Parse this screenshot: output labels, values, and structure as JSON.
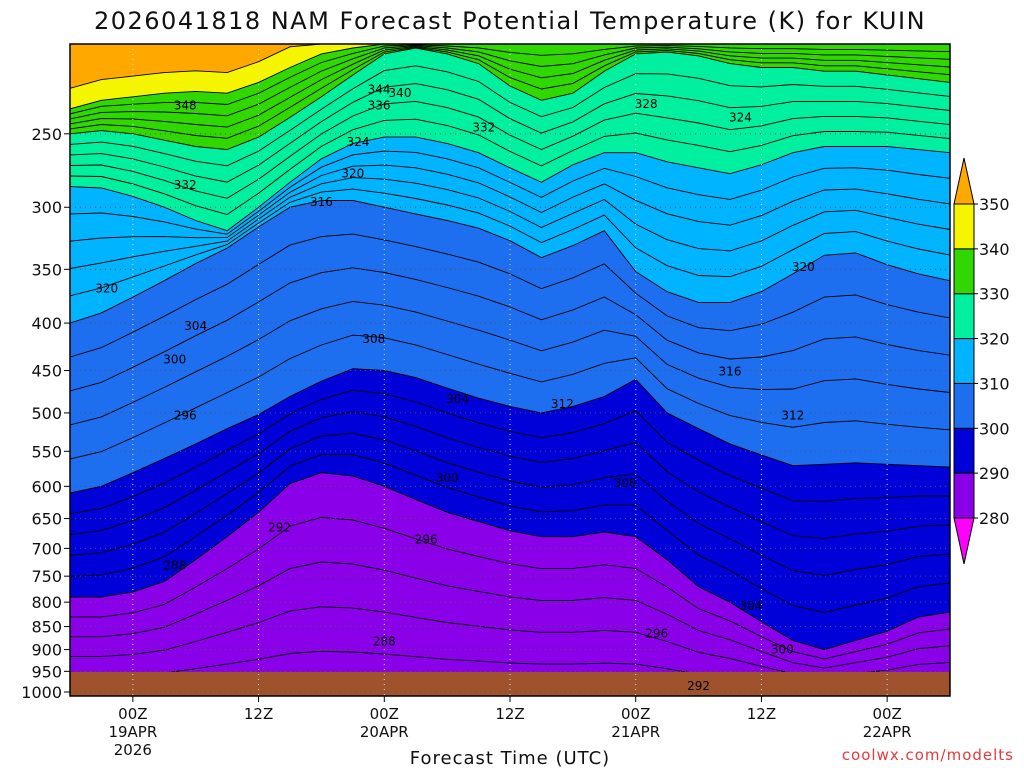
{
  "chart_data": {
    "type": "heatmap",
    "title": "2026041818 NAM Forecast Potential Temperature (K) for KUIN",
    "xlabel": "Forecast Time (UTC)",
    "ylabel": "",
    "credit": "coolwx.com/modelts",
    "y_ticks": [
      "250",
      "300",
      "350",
      "400",
      "450",
      "500",
      "550",
      "600",
      "650",
      "700",
      "750",
      "800",
      "850",
      "900",
      "950",
      "1000"
    ],
    "y_tick_values": [
      250,
      300,
      350,
      400,
      450,
      500,
      550,
      600,
      650,
      700,
      750,
      800,
      850,
      900,
      950,
      1000
    ],
    "y_scale": "log-pressure, inverted",
    "ylim": [
      1010,
      200
    ],
    "x_ticks": [
      {
        "hour": 6,
        "label": "00Z",
        "date": "19APR",
        "year": "2026"
      },
      {
        "hour": 18,
        "label": "12Z",
        "date": "",
        "year": ""
      },
      {
        "hour": 30,
        "label": "00Z",
        "date": "20APR",
        "year": ""
      },
      {
        "hour": 42,
        "label": "12Z",
        "date": "",
        "year": ""
      },
      {
        "hour": 54,
        "label": "00Z",
        "date": "21APR",
        "year": ""
      },
      {
        "hour": 66,
        "label": "12Z",
        "date": "",
        "year": ""
      },
      {
        "hour": 78,
        "label": "00Z",
        "date": "22APR",
        "year": ""
      }
    ],
    "xlim": [
      0,
      84
    ],
    "colorbar": {
      "levels": [
        280,
        290,
        300,
        310,
        320,
        330,
        340,
        350
      ],
      "labels": [
        "280",
        "290",
        "300",
        "310",
        "320",
        "330",
        "340",
        "350"
      ],
      "colors": [
        "#8a00e8",
        "#2c00f2",
        "#0000d8",
        "#1e6ef0",
        "#00b4ff",
        "#00f0a0",
        "#30d700",
        "#9ee800",
        "#f5f500",
        "#ffa800"
      ],
      "under_color": "#ff00ff",
      "over_color": "#ffa800"
    },
    "bands": [
      {
        "level": 340,
        "p": [
          235,
          230,
          228,
          226,
          225,
          226,
          220,
          212,
          205,
          202,
          200,
          200,
          200,
          200,
          200,
          200,
          200,
          200,
          200,
          200,
          200,
          200,
          200,
          200,
          200,
          200,
          200,
          200,
          200
        ]
      },
      {
        "level": 330,
        "p": [
          250,
          248,
          250,
          254,
          258,
          260,
          252,
          240,
          228,
          216,
          205,
          202,
          205,
          210,
          222,
          230,
          226,
          214,
          205,
          204,
          206,
          210,
          212,
          212,
          214,
          214,
          216,
          218,
          220
        ]
      },
      {
        "level": 320,
        "p": [
          285,
          286,
          292,
          300,
          310,
          318,
          300,
          282,
          266,
          256,
          252,
          252,
          256,
          262,
          272,
          282,
          270,
          262,
          262,
          268,
          272,
          276,
          270,
          262,
          258,
          258,
          258,
          260,
          262
        ]
      },
      {
        "level": 310,
        "p": [
          400,
          390,
          375,
          360,
          345,
          332,
          315,
          300,
          295,
          295,
          300,
          305,
          310,
          316,
          326,
          340,
          330,
          318,
          352,
          370,
          380,
          380,
          370,
          354,
          338,
          336,
          346,
          354,
          360
        ]
      },
      {
        "level": 300,
        "p": [
          610,
          600,
          580,
          560,
          540,
          520,
          502,
          480,
          462,
          448,
          450,
          458,
          470,
          482,
          492,
          500,
          492,
          480,
          460,
          500,
          520,
          540,
          555,
          570,
          568,
          566,
          568,
          570,
          572
        ]
      },
      {
        "level": 290,
        "p": [
          790,
          790,
          780,
          760,
          720,
          680,
          640,
          596,
          580,
          585,
          600,
          620,
          640,
          655,
          670,
          680,
          680,
          672,
          680,
          720,
          770,
          800,
          840,
          880,
          900,
          880,
          860,
          830,
          820
        ]
      },
      {
        "level": 280,
        "p": [
          1010,
          1010,
          1010,
          1010,
          1010,
          1010,
          1010,
          1010,
          1010,
          1010,
          1010,
          1010,
          1010,
          1010,
          1010,
          1010,
          1010,
          1010,
          1010,
          1010,
          1010,
          1010,
          1010,
          1010,
          1010,
          1010,
          1010,
          1010,
          1010
        ]
      }
    ],
    "contour_labels": [
      {
        "text": "344",
        "hour": 29.5,
        "p": 224
      },
      {
        "text": "340",
        "hour": 31.5,
        "p": 226
      },
      {
        "text": "348",
        "hour": 11,
        "p": 233
      },
      {
        "text": "336",
        "hour": 29.5,
        "p": 233
      },
      {
        "text": "328",
        "hour": 55,
        "p": 232
      },
      {
        "text": "324",
        "hour": 64,
        "p": 240
      },
      {
        "text": "332",
        "hour": 39.5,
        "p": 246
      },
      {
        "text": "324",
        "hour": 27.5,
        "p": 255
      },
      {
        "text": "332",
        "hour": 11,
        "p": 284
      },
      {
        "text": "320",
        "hour": 27,
        "p": 276
      },
      {
        "text": "316",
        "hour": 24,
        "p": 296
      },
      {
        "text": "320",
        "hour": 70,
        "p": 348
      },
      {
        "text": "320",
        "hour": 3.5,
        "p": 367
      },
      {
        "text": "304",
        "hour": 12,
        "p": 403
      },
      {
        "text": "308",
        "hour": 29,
        "p": 416
      },
      {
        "text": "300",
        "hour": 10,
        "p": 438
      },
      {
        "text": "316",
        "hour": 63,
        "p": 451
      },
      {
        "text": "304",
        "hour": 37,
        "p": 483
      },
      {
        "text": "312",
        "hour": 47,
        "p": 489
      },
      {
        "text": "296",
        "hour": 11,
        "p": 503
      },
      {
        "text": "312",
        "hour": 69,
        "p": 503
      },
      {
        "text": "300",
        "hour": 36,
        "p": 588
      },
      {
        "text": "308",
        "hour": 53,
        "p": 595
      },
      {
        "text": "292",
        "hour": 20,
        "p": 665
      },
      {
        "text": "296",
        "hour": 34,
        "p": 685
      },
      {
        "text": "288",
        "hour": 10,
        "p": 730
      },
      {
        "text": "304",
        "hour": 65,
        "p": 808
      },
      {
        "text": "296",
        "hour": 56,
        "p": 865
      },
      {
        "text": "288",
        "hour": 30,
        "p": 882
      },
      {
        "text": "300",
        "hour": 68,
        "p": 900
      },
      {
        "text": "292",
        "hour": 60,
        "p": 985
      }
    ],
    "grid": true,
    "surface": "ground shown below 1000 hPa",
    "legend": "colorbar-right"
  }
}
